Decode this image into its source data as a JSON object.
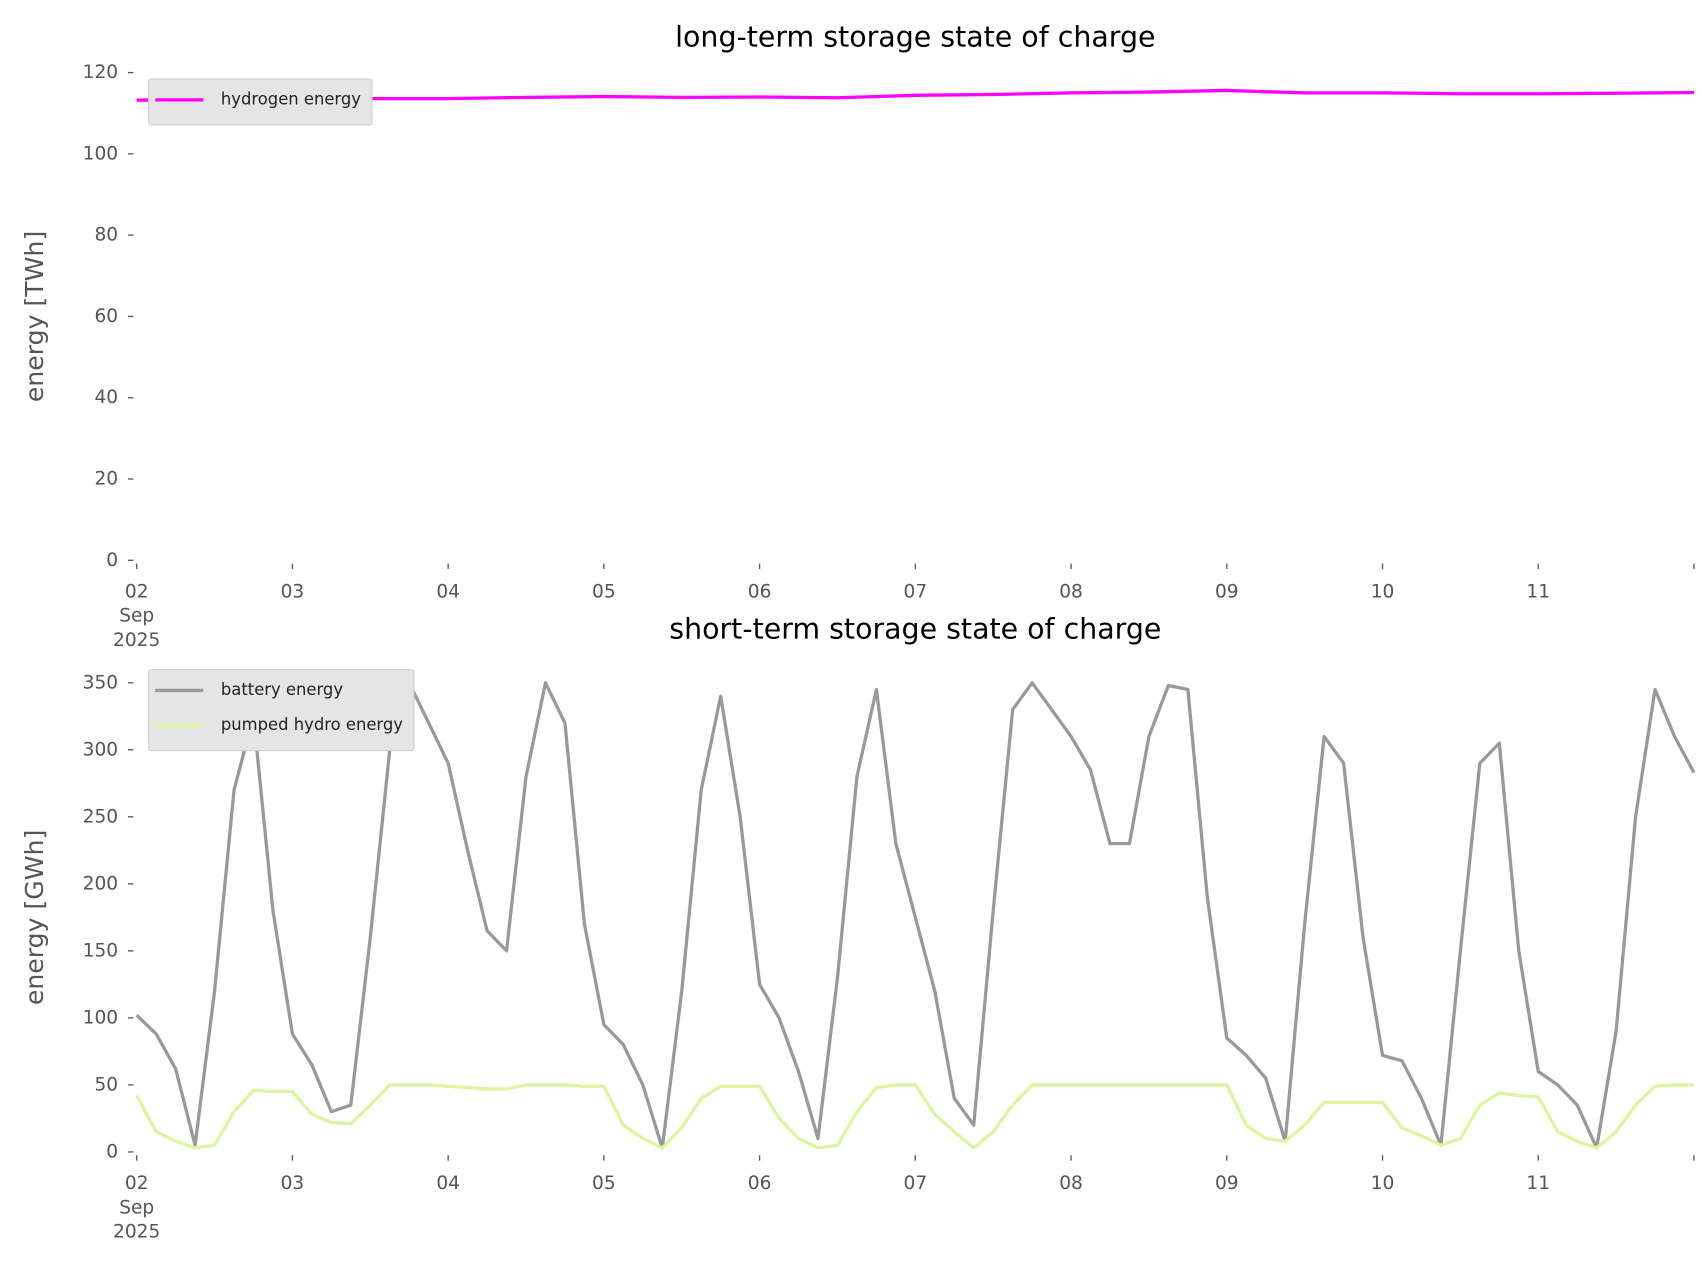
{
  "chart_data": [
    {
      "type": "line",
      "title": "long-term storage state of charge",
      "ylabel": "energy [TWh]",
      "legend": "upper left",
      "x": [
        "2025-09-02T00:00",
        "2025-09-02T12:00",
        "2025-09-03T00:00",
        "2025-09-03T12:00",
        "2025-09-04T00:00",
        "2025-09-04T12:00",
        "2025-09-05T00:00",
        "2025-09-05T12:00",
        "2025-09-06T00:00",
        "2025-09-06T12:00",
        "2025-09-07T00:00",
        "2025-09-07T12:00",
        "2025-09-08T00:00",
        "2025-09-08T12:00",
        "2025-09-09T00:00",
        "2025-09-09T12:00",
        "2025-09-10T00:00",
        "2025-09-10T12:00",
        "2025-09-11T00:00",
        "2025-09-11T12:00",
        "2025-09-12T00:00"
      ],
      "series": [
        {
          "name": "hydrogen energy",
          "color": "#ff00ff",
          "values": [
            113.2,
            113.4,
            113.5,
            113.6,
            113.6,
            113.9,
            114.1,
            113.9,
            114.0,
            113.8,
            114.4,
            114.6,
            115.0,
            115.2,
            115.6,
            115.0,
            115.0,
            114.8,
            114.8,
            114.9,
            115.1
          ]
        }
      ],
      "xlim": [
        "2025-09-02T00:00",
        "2025-09-12T00:00"
      ],
      "xticks": [
        {
          "value": "2025-09-02",
          "label": "02\nSep\n2025"
        },
        {
          "value": "2025-09-03",
          "label": "03"
        },
        {
          "value": "2025-09-04",
          "label": "04"
        },
        {
          "value": "2025-09-05",
          "label": "05"
        },
        {
          "value": "2025-09-06",
          "label": "06"
        },
        {
          "value": "2025-09-07",
          "label": "07"
        },
        {
          "value": "2025-09-08",
          "label": "08"
        },
        {
          "value": "2025-09-09",
          "label": "09"
        },
        {
          "value": "2025-09-10",
          "label": "10"
        },
        {
          "value": "2025-09-11",
          "label": "11"
        }
      ],
      "ylim": [
        0,
        120
      ],
      "yticks": [
        0,
        20,
        40,
        60,
        80,
        100,
        120
      ]
    },
    {
      "type": "line",
      "title": "short-term storage state of charge",
      "ylabel": "energy [GWh]",
      "legend": "upper left",
      "x": [
        "2025-09-02T00:00",
        "2025-09-02T03:00",
        "2025-09-02T06:00",
        "2025-09-02T09:00",
        "2025-09-02T12:00",
        "2025-09-02T15:00",
        "2025-09-02T18:00",
        "2025-09-02T21:00",
        "2025-09-03T00:00",
        "2025-09-03T03:00",
        "2025-09-03T06:00",
        "2025-09-03T09:00",
        "2025-09-03T12:00",
        "2025-09-03T15:00",
        "2025-09-03T18:00",
        "2025-09-03T21:00",
        "2025-09-04T00:00",
        "2025-09-04T03:00",
        "2025-09-04T06:00",
        "2025-09-04T09:00",
        "2025-09-04T12:00",
        "2025-09-04T15:00",
        "2025-09-04T18:00",
        "2025-09-04T21:00",
        "2025-09-05T00:00",
        "2025-09-05T03:00",
        "2025-09-05T06:00",
        "2025-09-05T09:00",
        "2025-09-05T12:00",
        "2025-09-05T15:00",
        "2025-09-05T18:00",
        "2025-09-05T21:00",
        "2025-09-06T00:00",
        "2025-09-06T03:00",
        "2025-09-06T06:00",
        "2025-09-06T09:00",
        "2025-09-06T12:00",
        "2025-09-06T15:00",
        "2025-09-06T18:00",
        "2025-09-06T21:00",
        "2025-09-07T00:00",
        "2025-09-07T03:00",
        "2025-09-07T06:00",
        "2025-09-07T09:00",
        "2025-09-07T12:00",
        "2025-09-07T15:00",
        "2025-09-07T18:00",
        "2025-09-07T21:00",
        "2025-09-08T00:00",
        "2025-09-08T03:00",
        "2025-09-08T06:00",
        "2025-09-08T09:00",
        "2025-09-08T12:00",
        "2025-09-08T15:00",
        "2025-09-08T18:00",
        "2025-09-08T21:00",
        "2025-09-09T00:00",
        "2025-09-09T03:00",
        "2025-09-09T06:00",
        "2025-09-09T09:00",
        "2025-09-09T12:00",
        "2025-09-09T15:00",
        "2025-09-09T18:00",
        "2025-09-09T21:00",
        "2025-09-10T00:00",
        "2025-09-10T03:00",
        "2025-09-10T06:00",
        "2025-09-10T09:00",
        "2025-09-10T12:00",
        "2025-09-10T15:00",
        "2025-09-10T18:00",
        "2025-09-10T21:00",
        "2025-09-11T00:00",
        "2025-09-11T03:00",
        "2025-09-11T06:00",
        "2025-09-11T09:00",
        "2025-09-11T12:00",
        "2025-09-11T15:00",
        "2025-09-11T18:00",
        "2025-09-11T21:00",
        "2025-09-12T00:00"
      ],
      "series": [
        {
          "name": "battery energy",
          "color": "#999999",
          "values": [
            102,
            88,
            62,
            5,
            120,
            270,
            325,
            180,
            88,
            65,
            30,
            35,
            160,
            300,
            350,
            320,
            290,
            225,
            165,
            150,
            280,
            350,
            320,
            170,
            95,
            80,
            50,
            3,
            120,
            270,
            340,
            250,
            125,
            100,
            60,
            10,
            130,
            280,
            345,
            230,
            175,
            120,
            40,
            20,
            180,
            330,
            350,
            330,
            310,
            285,
            230,
            230,
            310,
            348,
            345,
            190,
            85,
            72,
            55,
            8,
            170,
            310,
            290,
            160,
            72,
            68,
            40,
            5,
            150,
            290,
            305,
            150,
            60,
            50,
            35,
            3,
            90,
            250,
            345,
            310,
            283
          ]
        },
        {
          "name": "pumped hydro energy",
          "color": "#dcf5a0",
          "values": [
            42,
            15,
            8,
            3,
            5,
            30,
            46,
            45,
            45,
            28,
            22,
            21,
            35,
            50,
            50,
            50,
            49,
            48,
            47,
            47,
            50,
            50,
            50,
            49,
            49,
            20,
            10,
            3,
            18,
            40,
            49,
            49,
            49,
            25,
            10,
            3,
            5,
            30,
            48,
            50,
            50,
            28,
            15,
            3,
            15,
            35,
            50,
            50,
            50,
            50,
            50,
            50,
            50,
            50,
            50,
            50,
            50,
            20,
            10,
            8,
            20,
            37,
            37,
            37,
            37,
            18,
            12,
            5,
            10,
            35,
            44,
            42,
            41,
            15,
            8,
            3,
            15,
            35,
            49,
            50,
            50
          ]
        }
      ],
      "xlim": [
        "2025-09-02T00:00",
        "2025-09-12T00:00"
      ],
      "xticks": [
        {
          "value": "2025-09-02",
          "label": "02\nSep\n2025"
        },
        {
          "value": "2025-09-03",
          "label": "03"
        },
        {
          "value": "2025-09-04",
          "label": "04"
        },
        {
          "value": "2025-09-05",
          "label": "05"
        },
        {
          "value": "2025-09-06",
          "label": "06"
        },
        {
          "value": "2025-09-07",
          "label": "07"
        },
        {
          "value": "2025-09-08",
          "label": "08"
        },
        {
          "value": "2025-09-09",
          "label": "09"
        },
        {
          "value": "2025-09-10",
          "label": "10"
        },
        {
          "value": "2025-09-11",
          "label": "11"
        }
      ],
      "ylim": [
        0,
        350
      ],
      "yticks": [
        0,
        50,
        100,
        150,
        200,
        250,
        300,
        350
      ]
    }
  ]
}
